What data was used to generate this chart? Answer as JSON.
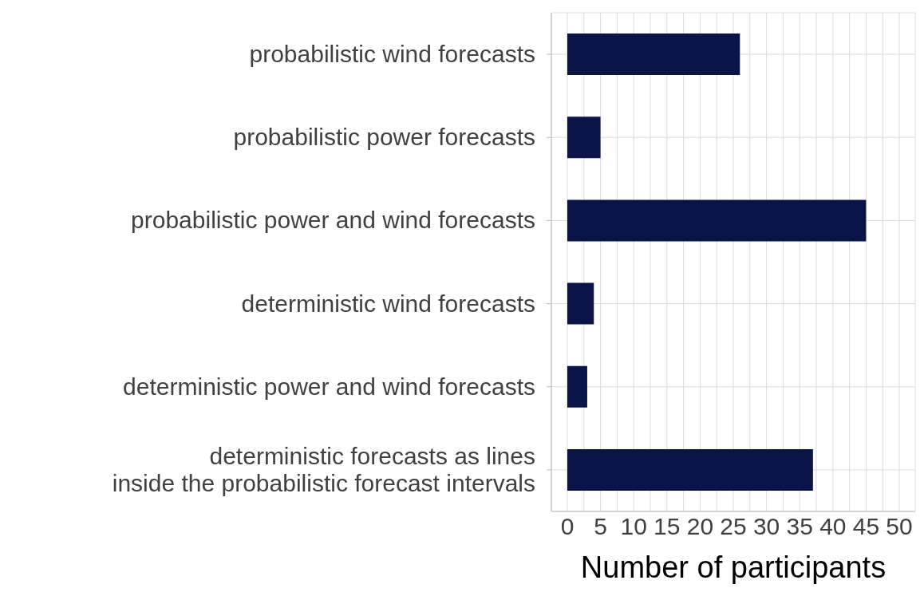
{
  "chart_data": {
    "type": "bar",
    "orientation": "horizontal",
    "categories": [
      "probabilistic wind forecasts",
      "probabilistic power forecasts",
      "probabilistic power and wind forecasts",
      "deterministic wind forecasts",
      "deterministic power and wind forecasts",
      "deterministic forecasts as lines\ninside the probabilistic forecast intervals"
    ],
    "values": [
      26,
      5,
      45,
      4,
      3,
      37
    ],
    "color": "#0b1446",
    "xlabel": "Number of participants",
    "xlim": [
      -2.4,
      52.4
    ],
    "xticks": [
      0,
      {
        "value": 2.5,
        "label": null
      },
      5,
      {
        "value": 7.5,
        "label": null
      },
      10,
      {
        "value": 12.5,
        "label": null
      },
      15,
      {
        "value": 17.5,
        "label": null
      },
      20,
      {
        "value": 22.5,
        "label": null
      },
      25,
      {
        "value": 27.5,
        "label": null
      },
      30,
      {
        "value": 32.5,
        "label": null
      },
      35,
      {
        "value": 37.5,
        "label": null
      },
      40,
      {
        "value": 42.5,
        "label": null
      },
      45,
      {
        "value": 47.5,
        "label": null
      },
      50
    ],
    "grid": true
  }
}
